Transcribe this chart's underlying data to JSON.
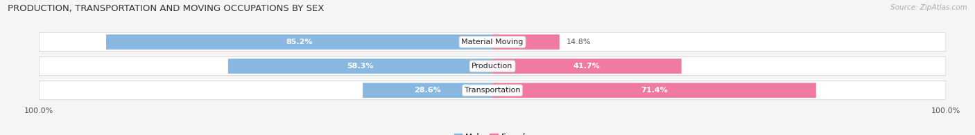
{
  "title": "PRODUCTION, TRANSPORTATION AND MOVING OCCUPATIONS BY SEX",
  "source": "Source: ZipAtlas.com",
  "categories": [
    "Material Moving",
    "Production",
    "Transportation"
  ],
  "male_pct": [
    85.2,
    58.3,
    28.6
  ],
  "female_pct": [
    14.8,
    41.7,
    71.4
  ],
  "male_color": "#88b8e0",
  "female_color": "#f07aa0",
  "male_label_inside_color": "white",
  "male_label_outside_color": "#555555",
  "female_label_inside_color": "white",
  "female_label_outside_color": "#555555",
  "bg_strip_color": "#e8e8f0",
  "fig_bg_color": "#f5f5f5",
  "title_fontsize": 9.5,
  "source_fontsize": 7.5,
  "tick_label_fontsize": 8,
  "bar_label_fontsize": 8,
  "cat_label_fontsize": 8,
  "legend_fontsize": 8.5,
  "figsize": [
    14.06,
    1.96
  ],
  "dpi": 100,
  "left_axis_label": "100.0%",
  "right_axis_label": "100.0%",
  "inside_threshold": 20
}
